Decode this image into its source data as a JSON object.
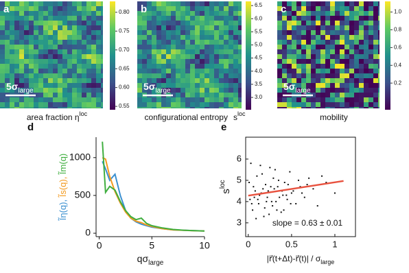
{
  "chart_data": [
    {
      "type": "heatmap",
      "panel": "a",
      "caption": "area fraction η",
      "caption_sup": "loc",
      "scalebar": "5σ",
      "scalebar_sub": "large",
      "colors": [
        "#440154",
        "#3b528b",
        "#21918c",
        "#5ec962",
        "#fde725"
      ],
      "colorbar_lim": [
        0.541,
        0.829
      ],
      "colorbar_ticks": [
        0.55,
        {
          "value": 0.6,
          "label": "0.60"
        },
        0.65,
        {
          "value": 0.7,
          "label": "0.70"
        },
        0.75,
        {
          "value": 0.8,
          "label": "0.80"
        }
      ]
    },
    {
      "type": "heatmap",
      "panel": "b",
      "caption": "configurational entropy",
      "caption_sup": "loc",
      "caption_main_sup_base": "s",
      "scalebar": "5σ",
      "scalebar_sub": "large",
      "colors": [
        "#440154",
        "#3b528b",
        "#21918c",
        "#5ec962",
        "#fde725"
      ],
      "colorbar_lim": [
        2.53,
        6.66
      ],
      "colorbar_ticks": [
        {
          "value": 3,
          "label": "3.0"
        },
        3.5,
        {
          "value": 4,
          "label": "4.0"
        },
        4.5,
        {
          "value": 5,
          "label": "5.0"
        },
        5.5,
        {
          "value": 6,
          "label": "6.0"
        },
        6.5
      ]
    },
    {
      "type": "heatmap",
      "panel": "c",
      "caption": "mobility",
      "scalebar": "5σ",
      "scalebar_sub": "large",
      "colors": [
        "#440154",
        "#3b528b",
        "#21918c",
        "#5ec962",
        "#fde725"
      ],
      "colorbar_lim": [
        -0.1,
        1.12
      ],
      "colorbar_ticks": [
        0.2,
        0.4,
        0.6,
        0.8,
        {
          "value": 1,
          "label": "1.0"
        }
      ]
    },
    {
      "type": "line",
      "panel": "d",
      "xlabel": "qσ",
      "xlabel_sub": "large",
      "ylabel": [
        "Ĩη(q), ",
        "Ĩs(q), ",
        "Ĩm(q)"
      ],
      "x": [
        0.3,
        0.6,
        1,
        1.5,
        2,
        2.5,
        3,
        3.5,
        4,
        4.5,
        5,
        6,
        7,
        8,
        9,
        10
      ],
      "series": [
        {
          "color": "#3a8fd0",
          "values": [
            950,
            850,
            700,
            780,
            500,
            300,
            200,
            150,
            120,
            100,
            80,
            60,
            45,
            40,
            35,
            30
          ]
        },
        {
          "color": "#f39a1f",
          "values": [
            1000,
            980,
            750,
            550,
            400,
            280,
            200,
            160,
            140,
            110,
            90,
            60,
            45,
            38,
            33,
            30
          ]
        },
        {
          "color": "#3fae3f",
          "values": [
            1210,
            540,
            620,
            570,
            420,
            300,
            220,
            180,
            200,
            130,
            100,
            70,
            50,
            40,
            35,
            30
          ]
        }
      ],
      "xlim": [
        -0.3,
        10
      ],
      "ylim": [
        -45,
        1270
      ],
      "xticks": [
        0,
        5,
        10
      ],
      "yticks": [
        0,
        500,
        1000
      ]
    },
    {
      "type": "scatter",
      "panel": "e",
      "ylabel": "s",
      "ylabel_sup": "loc",
      "xlabel": "|r⃗(t+Δt)-r⃗(t)| / σ",
      "xlabel_sub": "large",
      "annotation": "slope = 0.63 ± 0.01",
      "color": "#111111",
      "x": [
        0.02,
        0.05,
        0.08,
        0.1,
        0.12,
        0.15,
        0.18,
        0.2,
        0.22,
        0.25,
        0.28,
        0.3,
        0.32,
        0.35,
        0.38,
        0.4,
        0.42,
        0.45,
        0.48,
        0.5,
        0.55,
        0.6,
        0.65,
        0.7,
        0.75,
        0.8,
        0.9,
        1.0,
        0.03,
        0.06,
        0.09,
        0.13,
        0.16,
        0.19,
        0.23,
        0.27,
        0.31,
        0.36,
        0.41,
        0.46,
        0.52,
        0.58,
        0.04,
        0.11,
        0.17,
        0.24,
        0.29,
        0.34,
        0.44,
        0.62,
        0.01,
        0.14,
        0.21,
        0.33,
        0.39,
        0.07,
        0.26,
        0.49,
        0.68,
        0.85
      ],
      "values": [
        4.1,
        3.6,
        4.5,
        5.2,
        3.9,
        4.4,
        3.3,
        4.8,
        4.2,
        5.6,
        3.8,
        4.6,
        4.0,
        5.0,
        3.5,
        4.3,
        4.9,
        4.1,
        5.4,
        4.4,
        3.9,
        4.7,
        4.2,
        5.1,
        4.6,
        3.8,
        4.9,
        4.4,
        5.8,
        4.7,
        3.2,
        4.3,
        5.3,
        3.7,
        4.5,
        4.0,
        5.5,
        4.2,
        3.6,
        4.8,
        4.5,
        5.0,
        3.9,
        4.1,
        4.6,
        3.4,
        5.1,
        4.7,
        4.3,
        4.4,
        4.9,
        5.7,
        4.0,
        3.6,
        4.5,
        4.2,
        4.7,
        3.9,
        4.8,
        5.2
      ],
      "fit": {
        "x": [
          0,
          1.1
        ],
        "values": [
          4.28,
          4.97
        ],
        "color": "#e8523f"
      },
      "xlim": [
        -0.03,
        1.238
      ],
      "ylim": [
        2.35,
        7.03
      ],
      "xticks": [
        0,
        0.5,
        1
      ],
      "yticks": [
        3,
        4,
        5,
        6
      ]
    }
  ]
}
